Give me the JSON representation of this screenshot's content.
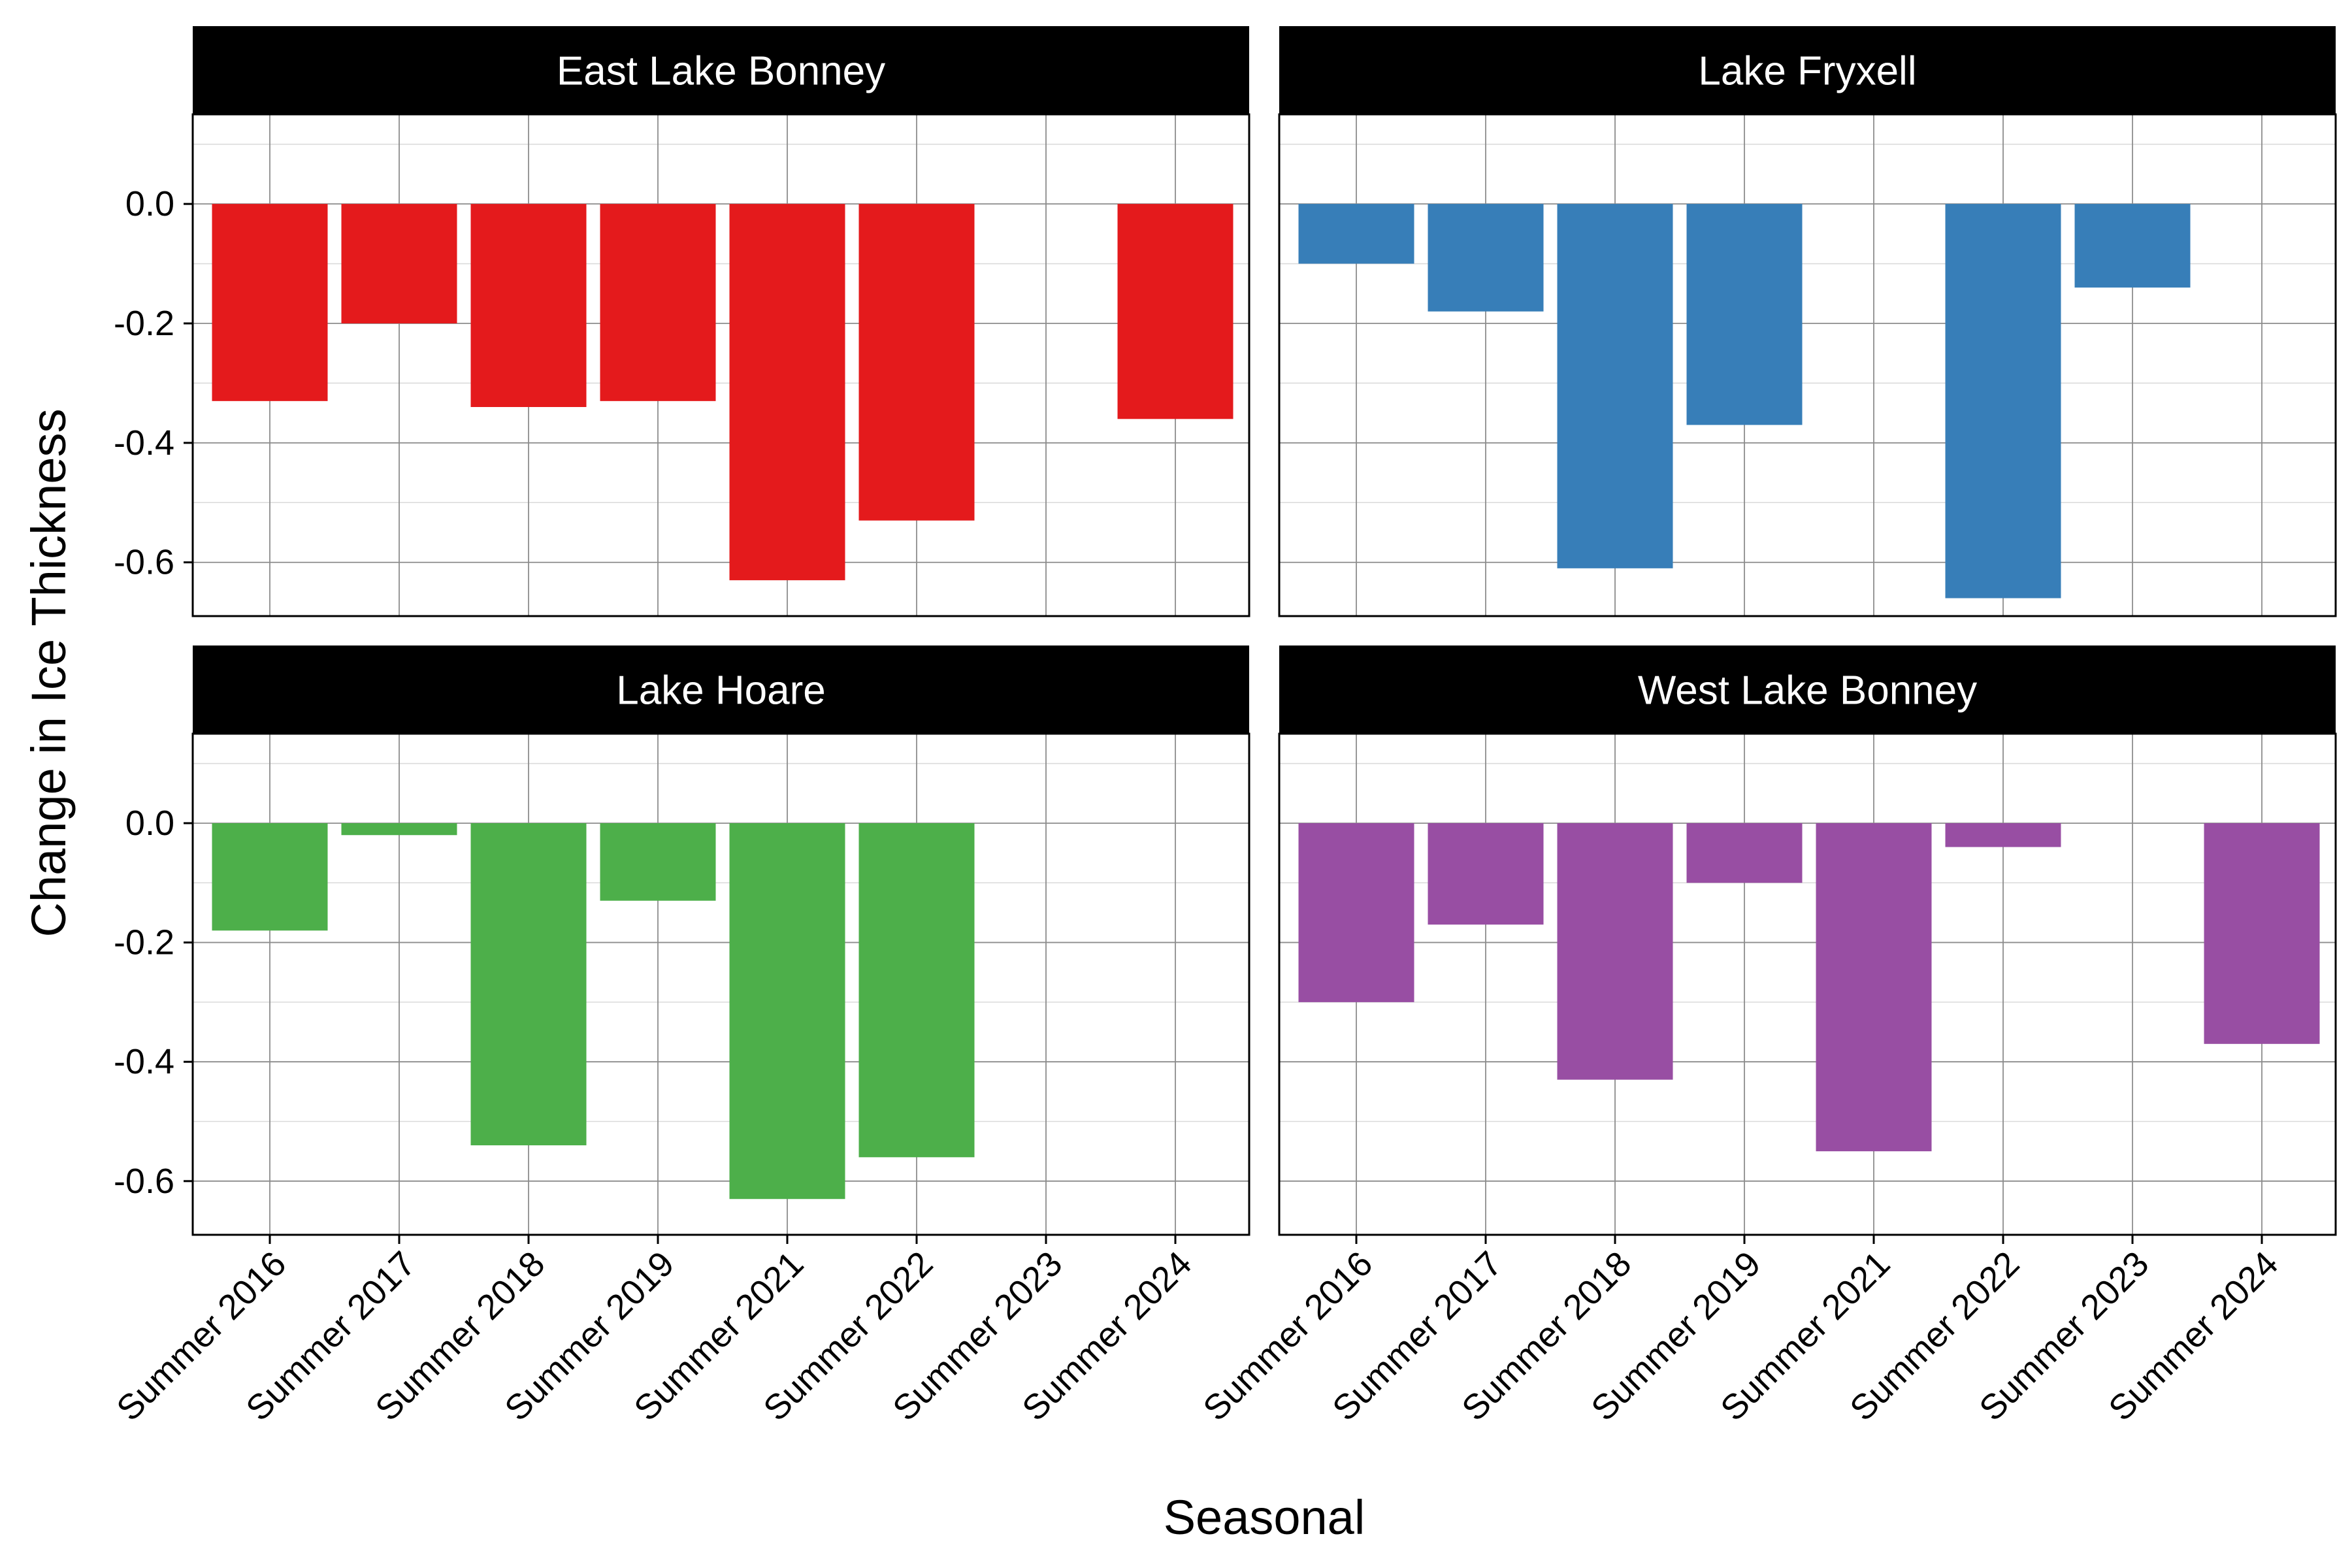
{
  "chart_data": {
    "type": "bar",
    "layout": "facet-grid",
    "xlabel": "Seasonal",
    "ylabel": "Change in Ice Thickness",
    "categories": [
      "Summer 2016",
      "Summer 2017",
      "Summer 2018",
      "Summer 2019",
      "Summer 2021",
      "Summer 2022",
      "Summer 2023",
      "Summer 2024"
    ],
    "ylim": [
      -0.69,
      0.15
    ],
    "yticks": [
      0.0,
      -0.2,
      -0.4,
      -0.6
    ],
    "ytick_labels": [
      "0.0",
      "-0.2",
      "-0.4",
      "-0.6"
    ],
    "grid": true,
    "panels": [
      {
        "title": "East Lake Bonney",
        "color": "#E41A1C",
        "values": [
          -0.33,
          -0.2,
          -0.34,
          -0.33,
          -0.63,
          -0.53,
          null,
          -0.36
        ]
      },
      {
        "title": "Lake Fryxell",
        "color": "#377EB8",
        "values": [
          -0.1,
          -0.18,
          -0.61,
          -0.37,
          null,
          -0.66,
          -0.14,
          null
        ]
      },
      {
        "title": "Lake Hoare",
        "color": "#4DAF4A",
        "values": [
          -0.18,
          -0.02,
          -0.54,
          -0.13,
          -0.63,
          -0.56,
          null,
          null
        ]
      },
      {
        "title": "West Lake Bonney",
        "color": "#984EA3",
        "values": [
          -0.3,
          -0.17,
          -0.43,
          -0.1,
          -0.55,
          -0.04,
          null,
          -0.37
        ]
      }
    ]
  }
}
